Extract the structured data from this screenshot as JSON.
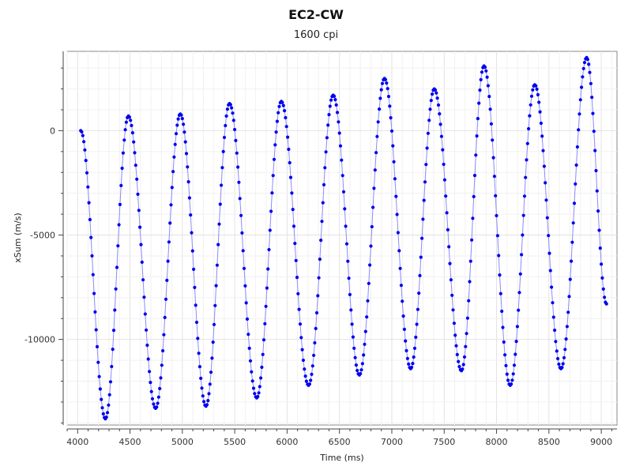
{
  "chart_data": {
    "type": "line",
    "title": "EC2-CW",
    "subtitle": "1600 cpi",
    "xlabel": "Time (ms)",
    "ylabel": "xSum (m/s)",
    "xlim": [
      3900,
      9150
    ],
    "ylim": [
      -14100,
      3800
    ],
    "x_ticks": [
      4000,
      4500,
      5000,
      5500,
      6000,
      6500,
      7000,
      7500,
      8000,
      8500,
      9000
    ],
    "y_ticks": [
      0,
      -5000,
      -10000
    ],
    "grid": true,
    "series": [
      {
        "name": "",
        "color": "#0000ee",
        "marker": "circle",
        "keypoints": [
          [
            4030,
            0
          ],
          [
            4265,
            -13800
          ],
          [
            4485,
            700
          ],
          [
            4745,
            -13300
          ],
          [
            4980,
            800
          ],
          [
            5225,
            -13200
          ],
          [
            5450,
            1300
          ],
          [
            5710,
            -12800
          ],
          [
            5945,
            1400
          ],
          [
            6205,
            -12200
          ],
          [
            6440,
            1700
          ],
          [
            6690,
            -11700
          ],
          [
            6930,
            2500
          ],
          [
            7180,
            -11400
          ],
          [
            7405,
            2000
          ],
          [
            7665,
            -11500
          ],
          [
            7880,
            3100
          ],
          [
            8130,
            -12200
          ],
          [
            8365,
            2200
          ],
          [
            8615,
            -11400
          ],
          [
            8860,
            3500
          ],
          [
            9050,
            -8300
          ]
        ]
      }
    ]
  }
}
